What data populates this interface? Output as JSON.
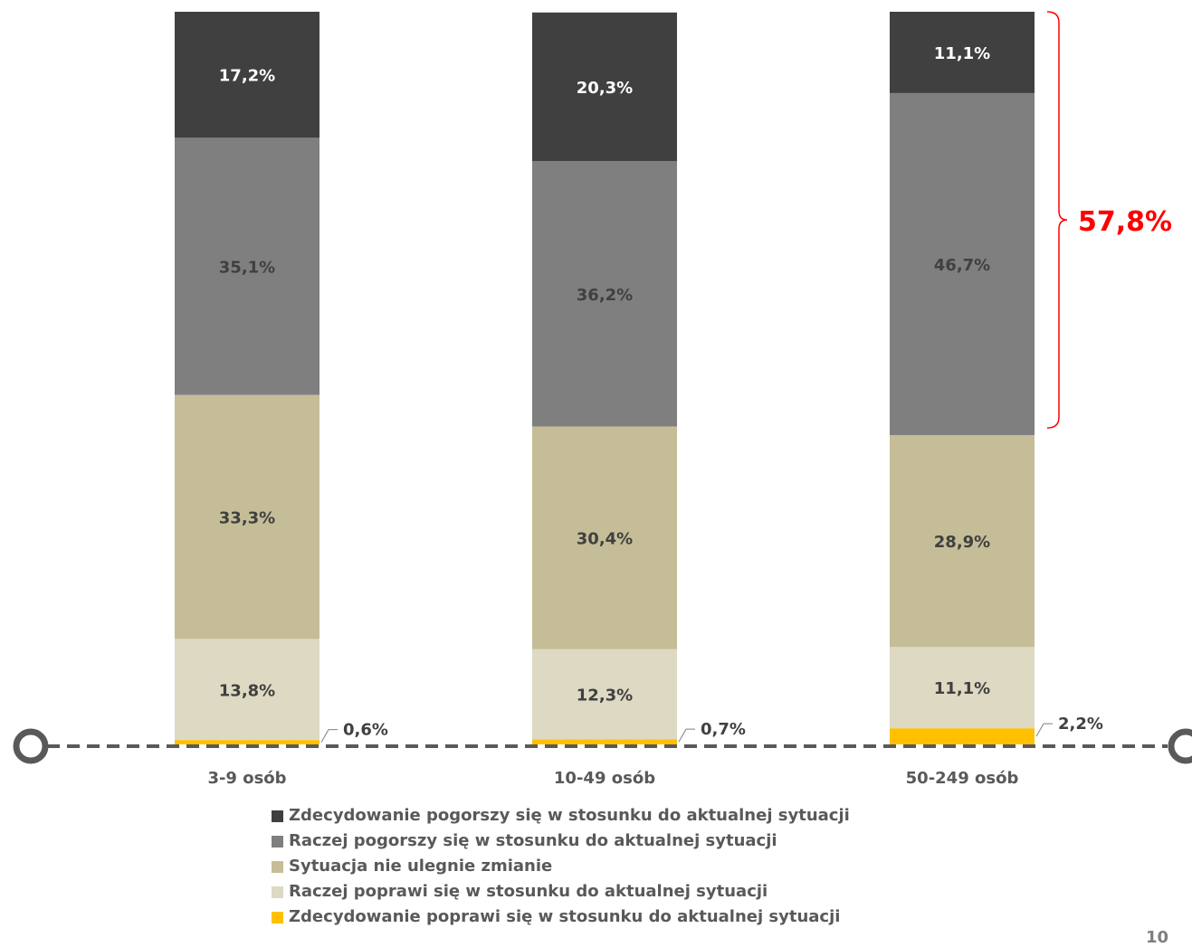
{
  "chart_data": {
    "type": "bar",
    "stacked": true,
    "categories": [
      "3-9 osób",
      "10-49 osób",
      "50-249 osób"
    ],
    "series": [
      {
        "name": "Zdecydowanie poprawi się w stosunku do aktualnej sytuacji",
        "values": [
          0.6,
          0.7,
          2.2
        ],
        "labels": [
          "0,6%",
          "0,7%",
          "2,2%"
        ],
        "color": "#ffc000"
      },
      {
        "name": "Raczej poprawi się w stosunku do aktualnej sytuacji",
        "values": [
          13.8,
          12.3,
          11.1
        ],
        "labels": [
          "13,8%",
          "12,3%",
          "11,1%"
        ],
        "color": "#ddd9c3"
      },
      {
        "name": "Sytuacja nie ulegnie zmianie",
        "values": [
          33.3,
          30.4,
          28.9
        ],
        "labels": [
          "33,3%",
          "30,4%",
          "28,9%"
        ],
        "color": "#c4bd97"
      },
      {
        "name": "Raczej pogorszy się w stosunku do aktualnej sytuacji",
        "values": [
          35.1,
          36.2,
          46.7
        ],
        "labels": [
          "35,1%",
          "36,2%",
          "46,7%"
        ],
        "color": "#7f7f7f"
      },
      {
        "name": "Zdecydowanie pogorszy się w stosunku do aktualnej sytuacji",
        "values": [
          17.2,
          20.3,
          11.1
        ],
        "labels": [
          "17,2%",
          "20,3%",
          "11,1%"
        ],
        "color": "#404040"
      }
    ],
    "label_colors": [
      "#404040",
      "#404040",
      "#404040",
      "#404040",
      "#ffffff"
    ],
    "legend_order": [
      4,
      3,
      2,
      1,
      0
    ],
    "ylim": [
      0,
      100
    ],
    "annotation": {
      "text": "57,8%",
      "category_index": 2,
      "series_from": 3,
      "series_to": 4,
      "color": "#ff0000"
    },
    "axis_color": "#595959"
  },
  "page_number": "10"
}
